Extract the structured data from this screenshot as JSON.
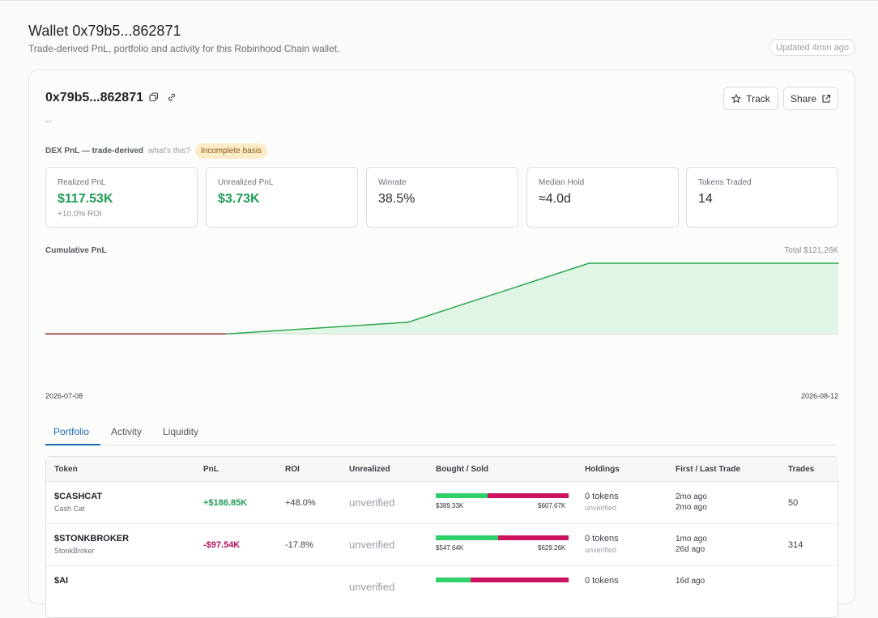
{
  "header": {
    "title": "Wallet 0x79b5...862871",
    "subtitle": "Trade-derived PnL, portfolio and activity for this Robinhood Chain wallet.",
    "updated": "Updated 4min ago"
  },
  "wallet": {
    "address": "0x79b5...862871",
    "dash": "--",
    "track_label": "Track",
    "share_label": "Share",
    "pnl_label": "DEX PnL — trade-derived",
    "whats_this": "what's this?",
    "badge": "Incomplete basis"
  },
  "stats": [
    {
      "label": "Realized PnL",
      "value": "$117.53K",
      "sub": "+10.0% ROI"
    },
    {
      "label": "Unrealized PnL",
      "value": "$3.73K"
    },
    {
      "label": "Winrate",
      "value": "38.5%"
    },
    {
      "label": "Median Hold",
      "value": "≈4.0d"
    },
    {
      "label": "Tokens Traded",
      "value": "14"
    }
  ],
  "colors": {
    "positive": "#1f9d55",
    "negative": "#b3125f",
    "accent": "#1f6fb5",
    "bought": "#2fd06a",
    "sold": "#cc1360"
  },
  "chart_data": {
    "type": "area",
    "title": "Cumulative PnL",
    "total_label": "Total $121.26K",
    "x_start": "2026-07-08",
    "x_end": "2026-08-12",
    "x": [
      "2026-07-08",
      "2026-07-16",
      "2026-07-24",
      "2026-08-01",
      "2026-08-12"
    ],
    "values": [
      0,
      0,
      20000,
      121260,
      121260
    ],
    "ylim": [
      -90000,
      121260
    ]
  },
  "tabs": [
    "Portfolio",
    "Activity",
    "Liquidity"
  ],
  "table": {
    "headers": [
      "Token",
      "PnL",
      "ROI",
      "Unrealized",
      "Bought / Sold",
      "Holdings",
      "First / Last Trade",
      "Trades"
    ],
    "rows": [
      {
        "symbol": "$CASHCAT",
        "name": "Cash Cat",
        "pnl": "+$186.85K",
        "roi": "+48.0%",
        "unrealized": "unverified",
        "bought": "$389.33K",
        "sold": "$607.67K",
        "bought_share": 0.39,
        "holdings": "0 tokens",
        "holdings_sub": "unverified",
        "first": "2mo ago",
        "last": "2mo ago",
        "trades": "50"
      },
      {
        "symbol": "$STONKBROKER",
        "name": "StonkBroker",
        "pnl": "-$97.54K",
        "roi": "-17.8%",
        "unrealized": "unverified",
        "bought": "$547.64K",
        "sold": "$629.26K",
        "bought_share": 0.47,
        "holdings": "0 tokens",
        "holdings_sub": "unverified",
        "first": "1mo ago",
        "last": "26d ago",
        "trades": "314"
      },
      {
        "symbol": "$AI",
        "name": "",
        "pnl": "",
        "roi": "",
        "unrealized": "unverified",
        "bought": "",
        "sold": "",
        "bought_share": 0.26,
        "holdings": "0 tokens",
        "holdings_sub": "",
        "first": "16d ago",
        "last": "",
        "trades": ""
      }
    ]
  }
}
